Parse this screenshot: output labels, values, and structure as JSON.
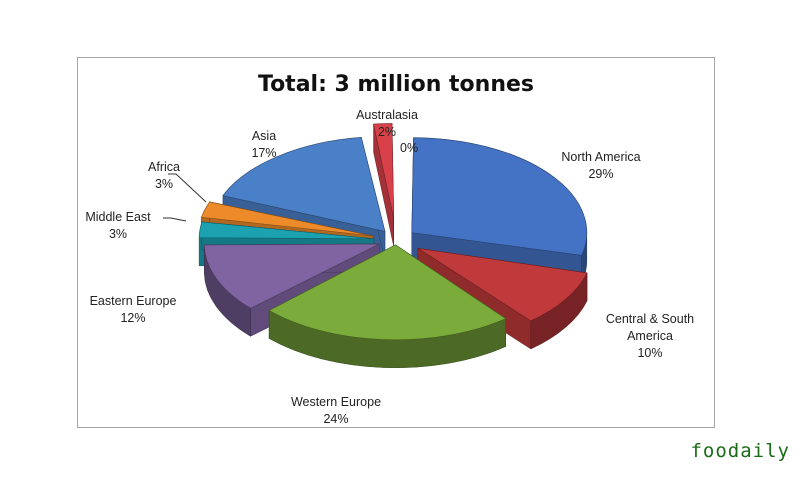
{
  "watermark": "foodaily",
  "chart_data": {
    "type": "pie",
    "title": "Total: 3 million tonnes",
    "three_d": true,
    "exploded": true,
    "slices": [
      {
        "label": "North America",
        "value": 29,
        "display": "29%",
        "color": "#4472c4"
      },
      {
        "label": "Central & South America",
        "value": 10,
        "display": "10%",
        "color": "#c0393b"
      },
      {
        "label": "Western Europe",
        "value": 24,
        "display": "24%",
        "color": "#7aab3b"
      },
      {
        "label": "Eastern Europe",
        "value": 12,
        "display": "12%",
        "color": "#8064a2"
      },
      {
        "label": "Middle East",
        "value": 3,
        "display": "3%",
        "color": "#1ba1b0"
      },
      {
        "label": "Africa",
        "value": 3,
        "display": "3%",
        "color": "#ed8a2a"
      },
      {
        "label": "Asia",
        "value": 17,
        "display": "17%",
        "color": "#4a80c8"
      },
      {
        "label": "Australasia",
        "value": 2,
        "display": "2%",
        "color": "#d9414a"
      },
      {
        "label": "",
        "value": 0,
        "display": "0%",
        "color": "#cccccc"
      }
    ]
  }
}
